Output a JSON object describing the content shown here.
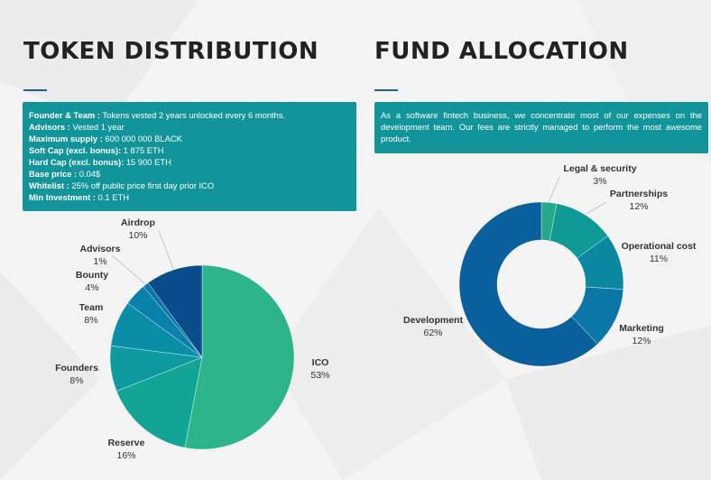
{
  "token": {
    "title": "TOKEN DISTRIBUTION",
    "info": [
      {
        "key": "Founder & Team :",
        "val": " Tokens vested 2 years unlocked every 6 months."
      },
      {
        "key": "Advisors :",
        "val": " Vested 1 year"
      },
      {
        "key": "Maximum supply :",
        "val": " 600 000 000 BLACK"
      },
      {
        "key": "Soft Cap (excl. bonus):",
        "val": " 1 875 ETH"
      },
      {
        "key": "Hard Cap (excl. bonus):",
        "val": " 15 900 ETH"
      },
      {
        "key": "Base price :",
        "val": " 0.04$"
      },
      {
        "key": "Whitelist :",
        "val": " 25% off public price first day prior ICO"
      },
      {
        "key": "Min Investment :",
        "val": " 0.1 ETH"
      }
    ]
  },
  "fund": {
    "title": "FUND ALLOCATION",
    "info": "As a software fintech business, we concentrate most of our expenses on the development team. Our fees are strictly managed to perform the most awesome product."
  },
  "colors": {
    "accent": "#11959a",
    "underline": "#1f5f8b"
  },
  "chart_data": [
    {
      "type": "pie",
      "categories": [
        "ICO",
        "Reserve",
        "Founders",
        "Team",
        "Bounty",
        "Advisors",
        "Airdrop"
      ],
      "values": [
        53,
        16,
        8,
        8,
        4,
        1,
        10
      ],
      "labels": [
        "53%",
        "16%",
        "8%",
        "8%",
        "4%",
        "1%",
        "10%"
      ],
      "colors": [
        "#2db48a",
        "#12a596",
        "#0c9a9e",
        "#0a8ea6",
        "#0a81aa",
        "#0b74a8",
        "#0a4d8c"
      ]
    },
    {
      "type": "pie",
      "categories": [
        "Legal & security",
        "Partnerships",
        "Operational cost",
        "Marketing",
        "Development"
      ],
      "values": [
        3,
        12,
        11,
        12,
        62
      ],
      "labels": [
        "3%",
        "12%",
        "11%",
        "12%",
        "62%"
      ],
      "colors": [
        "#26a98a",
        "#0f9a96",
        "#0b87a2",
        "#0a77a6",
        "#0a5f9d"
      ]
    }
  ]
}
